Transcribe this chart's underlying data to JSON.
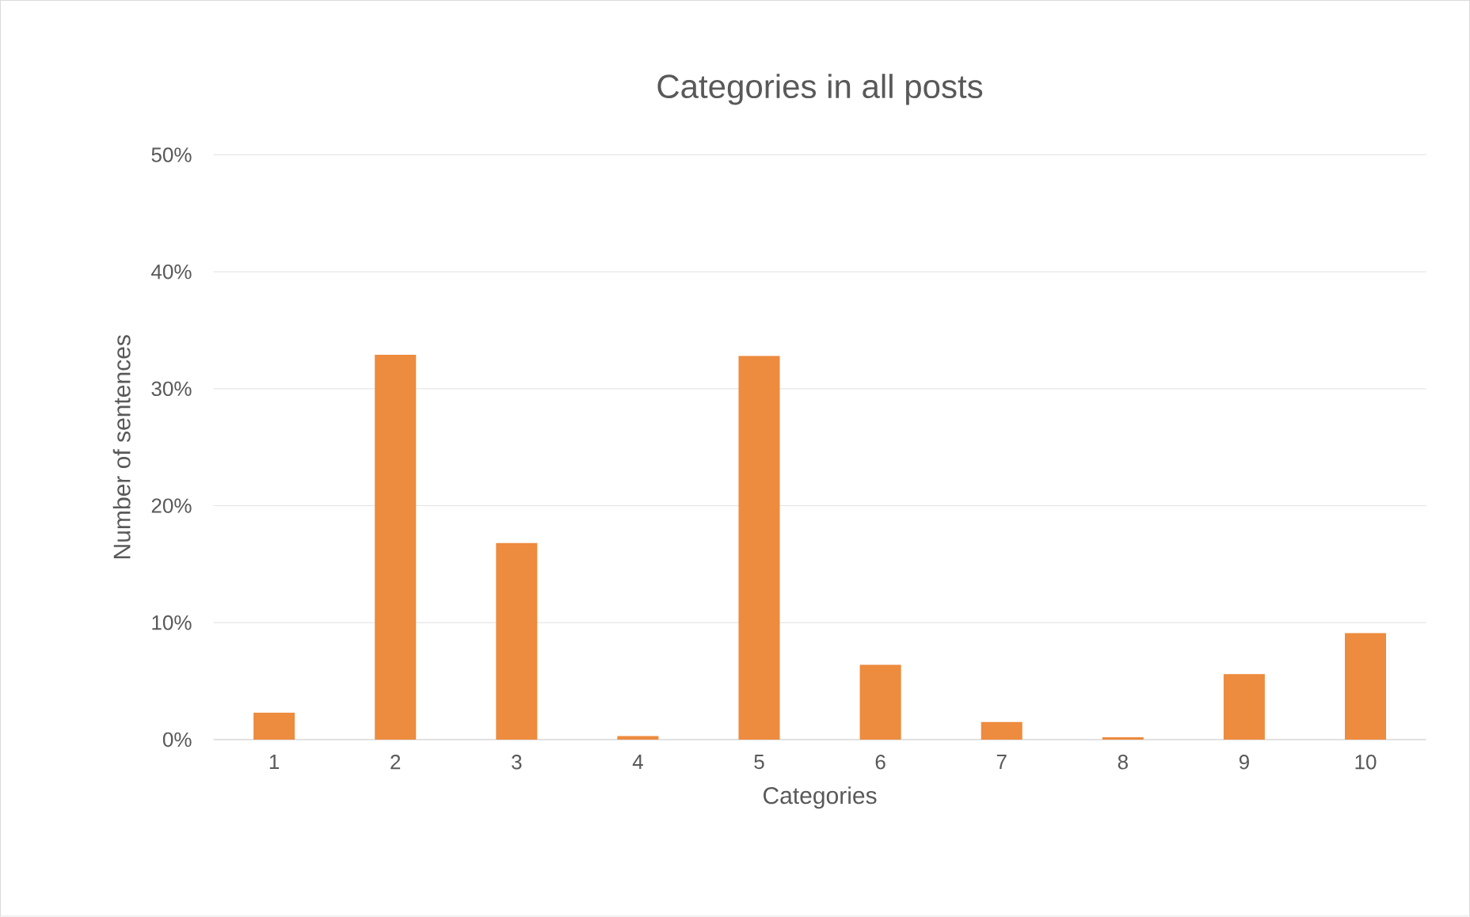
{
  "chart_data": {
    "type": "bar",
    "title": "Categories in all posts",
    "xlabel": "Categories",
    "ylabel": "Number of sentences",
    "categories": [
      "1",
      "2",
      "3",
      "4",
      "5",
      "6",
      "7",
      "8",
      "9",
      "10"
    ],
    "values": [
      2.3,
      32.9,
      16.8,
      0.3,
      32.8,
      6.4,
      1.5,
      0.2,
      5.6,
      9.1
    ],
    "color": "#ed8b3e",
    "ylim": [
      0,
      50
    ],
    "yticks": [
      {
        "value": 0,
        "label": "0%"
      },
      {
        "value": 10,
        "label": "10%"
      },
      {
        "value": 20,
        "label": "20%"
      },
      {
        "value": 30,
        "label": "30%"
      },
      {
        "value": 40,
        "label": "40%"
      },
      {
        "value": 50,
        "label": "50%"
      }
    ],
    "grid": "y"
  }
}
